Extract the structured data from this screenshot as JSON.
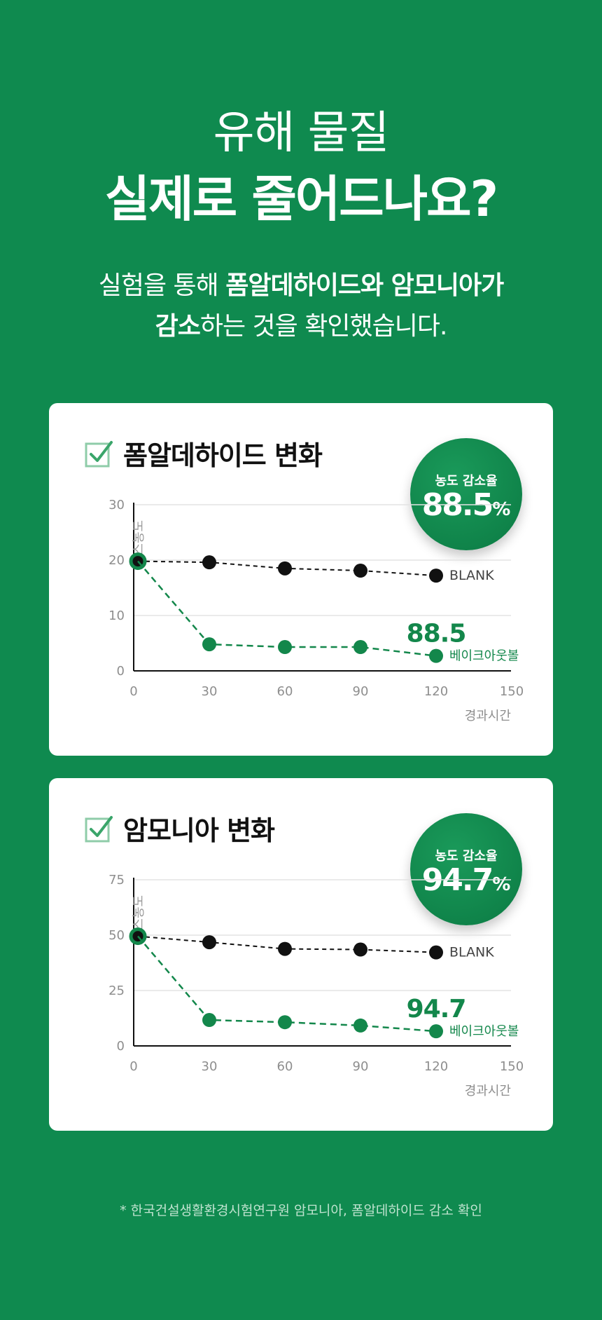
{
  "header": {
    "line1": "유해 물질",
    "line2": "실제로 줄어드나요?",
    "sub1_pre": "실험을 통해 ",
    "sub1_bold": "폼알데하이드와 암모니아가",
    "sub2_bold": "감소",
    "sub2_post": "하는 것을 확인했습니다."
  },
  "badge_label": "농도 감소율",
  "footnote": "* 한국건설생활환경시험연구원 암모니아, 폼알데하이드 감소 확인",
  "colors": {
    "background": "#0f8a4f",
    "accent": "#13874b",
    "blank": "#111111"
  },
  "chart_data": [
    {
      "type": "line",
      "title": "폼알데하이드 변화",
      "badge_value": "88.5",
      "badge_unit": "%",
      "highlight_label": "88.5",
      "xlabel": "경과시간",
      "ylabel": "가스농도",
      "xlim": [
        0,
        150
      ],
      "ylim": [
        0,
        30
      ],
      "xticks": [
        "0",
        "30",
        "60",
        "90",
        "120",
        "150"
      ],
      "yticks": [
        "0",
        "10",
        "20",
        "30"
      ],
      "grid": true,
      "x": [
        0,
        30,
        60,
        90,
        120
      ],
      "series": [
        {
          "name": "BLANK",
          "color": "#111111",
          "values": [
            19.8,
            19.6,
            18.5,
            18.1,
            17.2
          ]
        },
        {
          "name": "베이크아웃볼",
          "color": "#13874b",
          "values": [
            19.8,
            4.8,
            4.3,
            4.3,
            2.7
          ]
        }
      ]
    },
    {
      "type": "line",
      "title": "암모니아 변화",
      "badge_value": "94.7",
      "badge_unit": "%",
      "highlight_label": "94.7",
      "xlabel": "경과시간",
      "ylabel": "가스농도",
      "xlim": [
        0,
        150
      ],
      "ylim": [
        0,
        75
      ],
      "xticks": [
        "0",
        "30",
        "60",
        "90",
        "120",
        "150"
      ],
      "yticks": [
        "0",
        "25",
        "50",
        "75"
      ],
      "grid": true,
      "x": [
        0,
        30,
        60,
        90,
        120
      ],
      "series": [
        {
          "name": "BLANK",
          "color": "#111111",
          "values": [
            49.5,
            46.8,
            43.8,
            43.5,
            42.2
          ]
        },
        {
          "name": "베이크아웃볼",
          "color": "#13874b",
          "values": [
            49.5,
            11.7,
            10.7,
            9.2,
            6.6
          ]
        }
      ]
    }
  ]
}
